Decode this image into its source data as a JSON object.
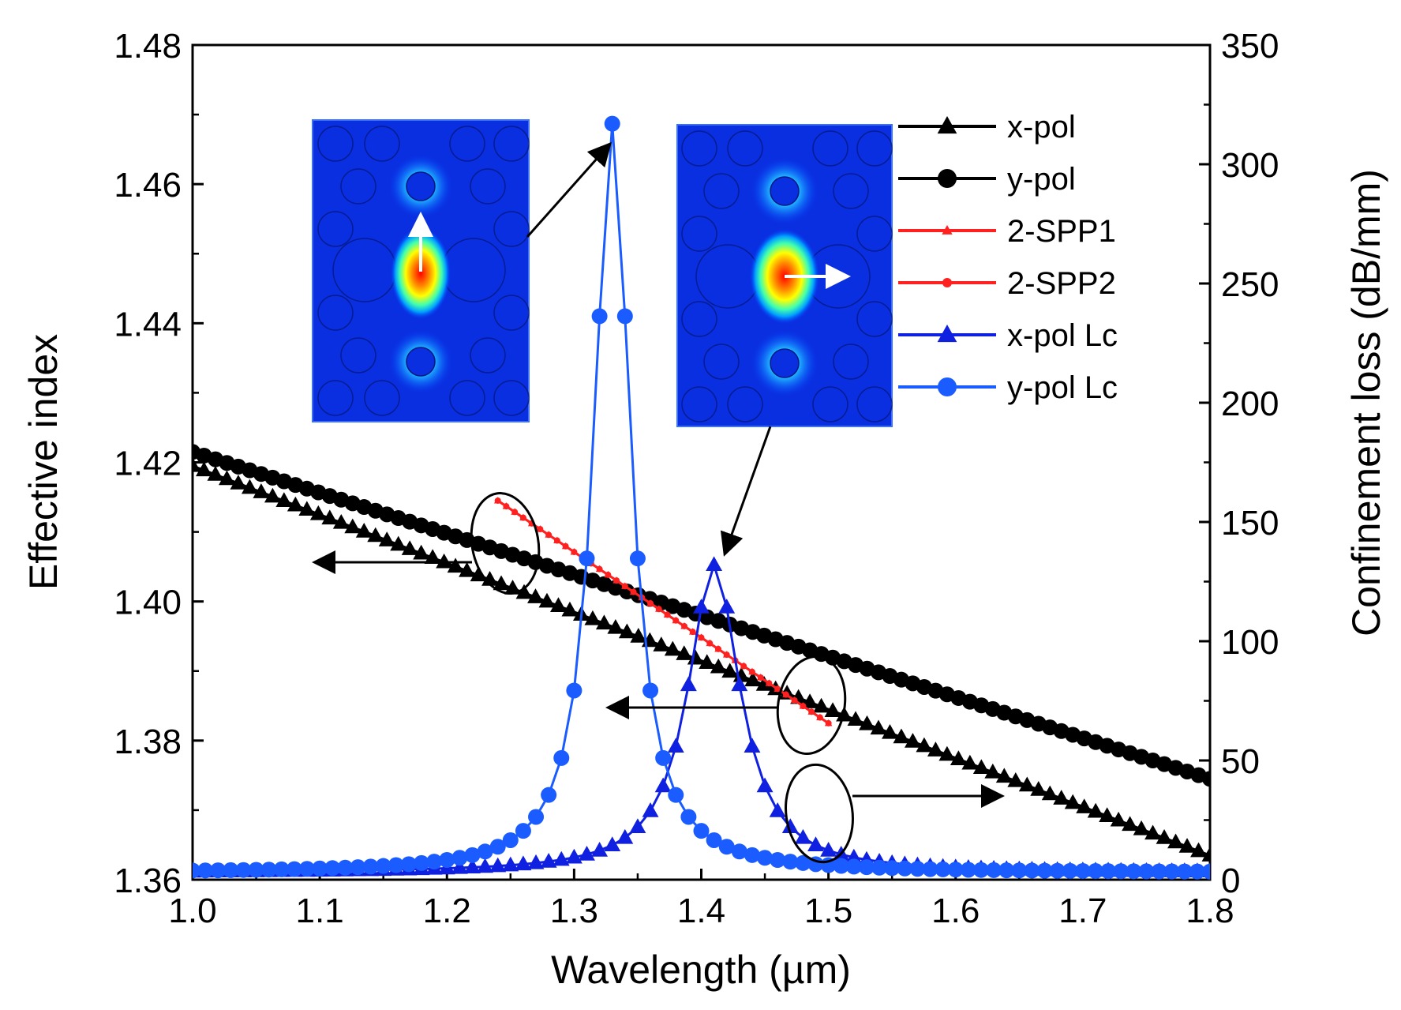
{
  "chart_data": {
    "type": "line",
    "title": "",
    "xlabel": "Wavelength (µm)",
    "ylabel_left": "Effective index",
    "ylabel_right": "Confinement loss (dB/mm)",
    "xlim": [
      1.0,
      1.8
    ],
    "ylim_left": [
      1.36,
      1.48
    ],
    "ylim_right": [
      0,
      350
    ],
    "xticks": [
      "1.0",
      "1.1",
      "1.2",
      "1.3",
      "1.4",
      "1.5",
      "1.6",
      "1.7",
      "1.8"
    ],
    "yticks_left": [
      "1.36",
      "1.38",
      "1.40",
      "1.42",
      "1.44",
      "1.46",
      "1.48"
    ],
    "yticks_right": [
      "0",
      "50",
      "100",
      "150",
      "200",
      "250",
      "300",
      "350"
    ],
    "legend_position": "top-right",
    "series": [
      {
        "name": "x-pol",
        "axis": "left",
        "color": "#000000",
        "marker": "triangle",
        "x_start": 1.0,
        "x_end": 1.8,
        "y_start": 1.4195,
        "y_end": 1.3635,
        "points": 90
      },
      {
        "name": "y-pol",
        "axis": "left",
        "color": "#000000",
        "marker": "circle",
        "x_start": 1.0,
        "x_end": 1.8,
        "y_start": 1.4215,
        "y_end": 1.3745,
        "points": 90
      },
      {
        "name": "2-SPP1",
        "axis": "left",
        "color": "#ff2020",
        "marker": "small-triangle",
        "x_start": 1.24,
        "x_end": 1.5,
        "y_start": 1.4145,
        "y_end": 1.3825,
        "points": 40
      },
      {
        "name": "2-SPP2",
        "axis": "left",
        "color": "#ff2020",
        "marker": "small-circle",
        "x_start": 1.24,
        "x_end": 1.5,
        "y_start": 1.4145,
        "y_end": 1.3825,
        "points": 40
      },
      {
        "name": "x-pol Lc",
        "axis": "right",
        "color": "#1020e0",
        "marker": "triangle",
        "peak": {
          "x": 1.41,
          "y": 132,
          "width": 0.025,
          "baseline": 3
        }
      },
      {
        "name": "y-pol Lc",
        "axis": "right",
        "color": "#1a5cff",
        "marker": "circle",
        "peak": {
          "x": 1.33,
          "y": 317,
          "width": 0.017,
          "baseline": 3
        }
      }
    ],
    "annotations": [
      {
        "type": "arrow",
        "direction": "left",
        "meaning": "curves read on left axis (effective index)"
      },
      {
        "type": "arrow",
        "direction": "right",
        "meaning": "curves read on right axis (confinement loss)"
      },
      {
        "type": "inset",
        "meaning": "mode field profile, vertical polarization (y-pol) at loss peak"
      },
      {
        "type": "inset",
        "meaning": "mode field profile, horizontal polarization (x-pol) at loss peak"
      }
    ]
  }
}
